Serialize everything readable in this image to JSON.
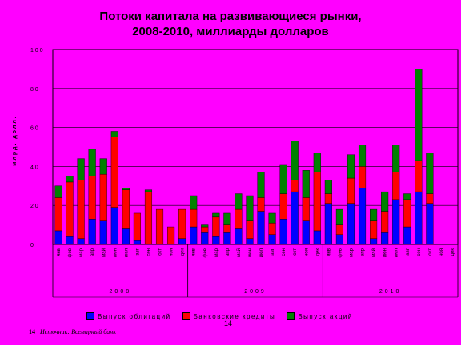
{
  "page": {
    "source_number": "14",
    "source_text": "Источник: Всемирный банк",
    "page_number": "14"
  },
  "chart_data": {
    "type": "bar",
    "stacked": true,
    "title": "Потоки капитала на развивающиеся рынки, 2008-2010, миллиарды долларов",
    "title_lines": [
      "Потоки капитала на развивающиеся рынки,",
      "2008-2010, миллиарды долларов"
    ],
    "ylabel": "млрд. долл.",
    "ylim": [
      0,
      100
    ],
    "yticks": [
      "0",
      "20",
      "40",
      "60",
      "80",
      "100"
    ],
    "grid": true,
    "legend_position": "bottom",
    "categories": [
      "янв",
      "фев",
      "мар",
      "апр",
      "май",
      "июн",
      "июл",
      "авг",
      "сен",
      "окт",
      "ноя",
      "дек",
      "янв",
      "фев",
      "мар",
      "апр",
      "май",
      "июн",
      "июл",
      "авг",
      "сен",
      "окт",
      "ноя",
      "дек",
      "янв",
      "фев",
      "мар",
      "апр",
      "май",
      "июн",
      "июл",
      "авг",
      "сен",
      "окт",
      "ноя",
      "дек"
    ],
    "years": [
      "2008",
      "2009",
      "2010"
    ],
    "series": [
      {
        "name": "Выпуск облигаций",
        "color": "#0000ff",
        "values": [
          7,
          4,
          3,
          13,
          12,
          19,
          8,
          2,
          0,
          0,
          0,
          3,
          9,
          6,
          4,
          6,
          8,
          3,
          17,
          5,
          13,
          27,
          12,
          7,
          21,
          5,
          21,
          29,
          3,
          6,
          23,
          9,
          27,
          21,
          0,
          0
        ]
      },
      {
        "name": "Банковские кредиты",
        "color": "#ff0000",
        "values": [
          17,
          28,
          30,
          22,
          24,
          36,
          20,
          14,
          27,
          18,
          9,
          15,
          9,
          3,
          10,
          4,
          10,
          9,
          7,
          6,
          13,
          6,
          12,
          30,
          5,
          5,
          13,
          11,
          9,
          11,
          14,
          14,
          16,
          5,
          0,
          0
        ]
      },
      {
        "name": "Выпуск акций",
        "color": "#008000",
        "values": [
          6,
          3,
          11,
          14,
          8,
          3,
          1,
          0,
          1,
          0,
          0,
          0,
          7,
          1,
          2,
          6,
          8,
          13,
          13,
          5,
          15,
          20,
          14,
          10,
          7,
          8,
          12,
          11,
          6,
          10,
          14,
          3,
          47,
          21,
          0,
          0
        ]
      }
    ]
  }
}
